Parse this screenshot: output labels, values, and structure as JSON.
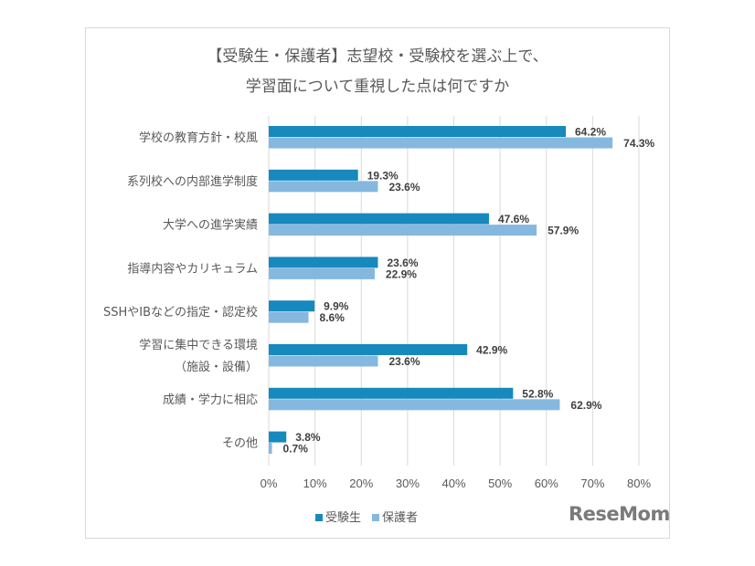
{
  "chart_data": {
    "type": "bar",
    "orientation": "horizontal",
    "title_lines": [
      "【受験生・保護者】志望校・受験校を選ぶ上で、",
      "学習面について重視した点は何ですか"
    ],
    "categories": [
      [
        "学校の教育方針・校風"
      ],
      [
        "系列校への内部進学制度"
      ],
      [
        "大学への進学実績"
      ],
      [
        "指導内容やカリキュラム"
      ],
      [
        "SSHやIBなどの指定・認定校"
      ],
      [
        "学習に集中できる環境",
        "（施設・設備）"
      ],
      [
        "成績・学力に相応"
      ],
      [
        "その他"
      ]
    ],
    "series": [
      {
        "name": "受験生",
        "color": "#1789bd",
        "values": [
          64.2,
          19.3,
          47.6,
          23.6,
          9.9,
          42.9,
          52.8,
          3.8
        ],
        "labels": [
          "64.2%",
          "19.3%",
          "47.6%",
          "23.6%",
          "9.9%",
          "42.9%",
          "52.8%",
          "3.8%"
        ]
      },
      {
        "name": "保護者",
        "color": "#85b8df",
        "values": [
          74.3,
          23.6,
          57.9,
          22.9,
          8.6,
          23.6,
          62.9,
          0.7
        ],
        "labels": [
          "74.3%",
          "23.6%",
          "57.9%",
          "22.9%",
          "8.6%",
          "23.6%",
          "62.9%",
          "0.7%"
        ]
      }
    ],
    "xlim": [
      0,
      80
    ],
    "xticks": [
      "0%",
      "10%",
      "20%",
      "30%",
      "40%",
      "50%",
      "60%",
      "70%",
      "80%"
    ],
    "grid": true,
    "legend_position": "bottom"
  },
  "logo": "ReseMom"
}
